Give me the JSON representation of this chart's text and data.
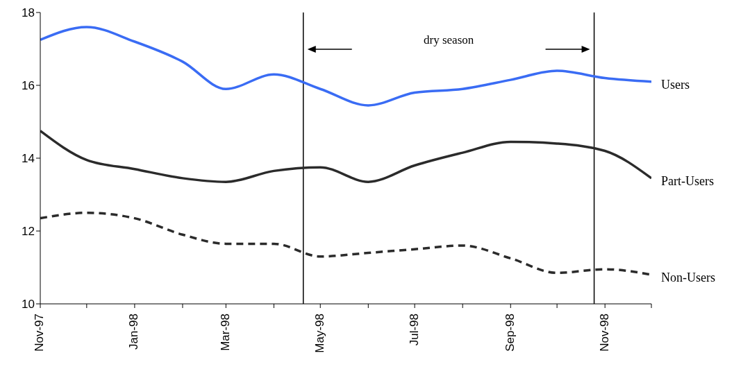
{
  "chart_data": {
    "type": "line",
    "x": [
      "1997-11",
      "1997-12",
      "1998-01",
      "1998-02",
      "1998-03",
      "1998-04",
      "1998-05",
      "1998-06",
      "1998-07",
      "1998-08",
      "1998-09",
      "1998-10",
      "1998-11",
      "1998-12"
    ],
    "series": [
      {
        "name": "Users",
        "color": "#3a6cf4",
        "values": [
          17.25,
          17.6,
          17.2,
          16.65,
          15.9,
          16.3,
          15.9,
          15.45,
          15.8,
          15.9,
          16.15,
          16.4,
          16.2,
          16.1
        ]
      },
      {
        "name": "Part-Users",
        "color": "#2b2b2b",
        "values": [
          14.75,
          13.95,
          13.7,
          13.45,
          13.35,
          13.65,
          13.75,
          13.35,
          13.8,
          14.15,
          14.45,
          14.4,
          14.2,
          13.45
        ]
      },
      {
        "name": "Non-Users",
        "color": "#2b2b2b",
        "line_style": "dashed",
        "values": [
          12.35,
          12.5,
          12.35,
          11.9,
          11.65,
          11.65,
          11.3,
          11.4,
          11.5,
          11.6,
          11.25,
          10.85,
          10.95,
          10.8
        ]
      }
    ],
    "xlim": [
      "1997-11",
      "1998-12"
    ],
    "xticks": [
      {
        "value": "1997-11",
        "label": "Nov-97"
      },
      {
        "value": "1997-12",
        "label": null
      },
      {
        "value": "1998-01",
        "label": "Jan-98"
      },
      {
        "value": "1998-02",
        "label": null
      },
      {
        "value": "1998-03",
        "label": "Mar-98"
      },
      {
        "value": "1998-04",
        "label": null
      },
      {
        "value": "1998-05",
        "label": "May-98"
      },
      {
        "value": "1998-06",
        "label": null
      },
      {
        "value": "1998-07",
        "label": "Jul-98"
      },
      {
        "value": "1998-08",
        "label": null
      },
      {
        "value": "1998-09",
        "label": "Sep-98"
      },
      {
        "value": "1998-10",
        "label": null
      },
      {
        "value": "1998-11",
        "label": "Nov-98"
      },
      {
        "value": "1998-12",
        "label": null
      }
    ],
    "ylim": [
      10,
      18
    ],
    "yticks": [
      10,
      12,
      14,
      16,
      18
    ],
    "ref_lines": [
      {
        "axis": "x",
        "value": "1998-04-20",
        "label": null,
        "color": "#000000"
      },
      {
        "axis": "x",
        "value": "1998-10-25",
        "label": null,
        "color": "#000000"
      }
    ],
    "annotations": [
      "dry season"
    ],
    "grid": false,
    "legend": false,
    "marker": "none",
    "line_style": "solid"
  }
}
